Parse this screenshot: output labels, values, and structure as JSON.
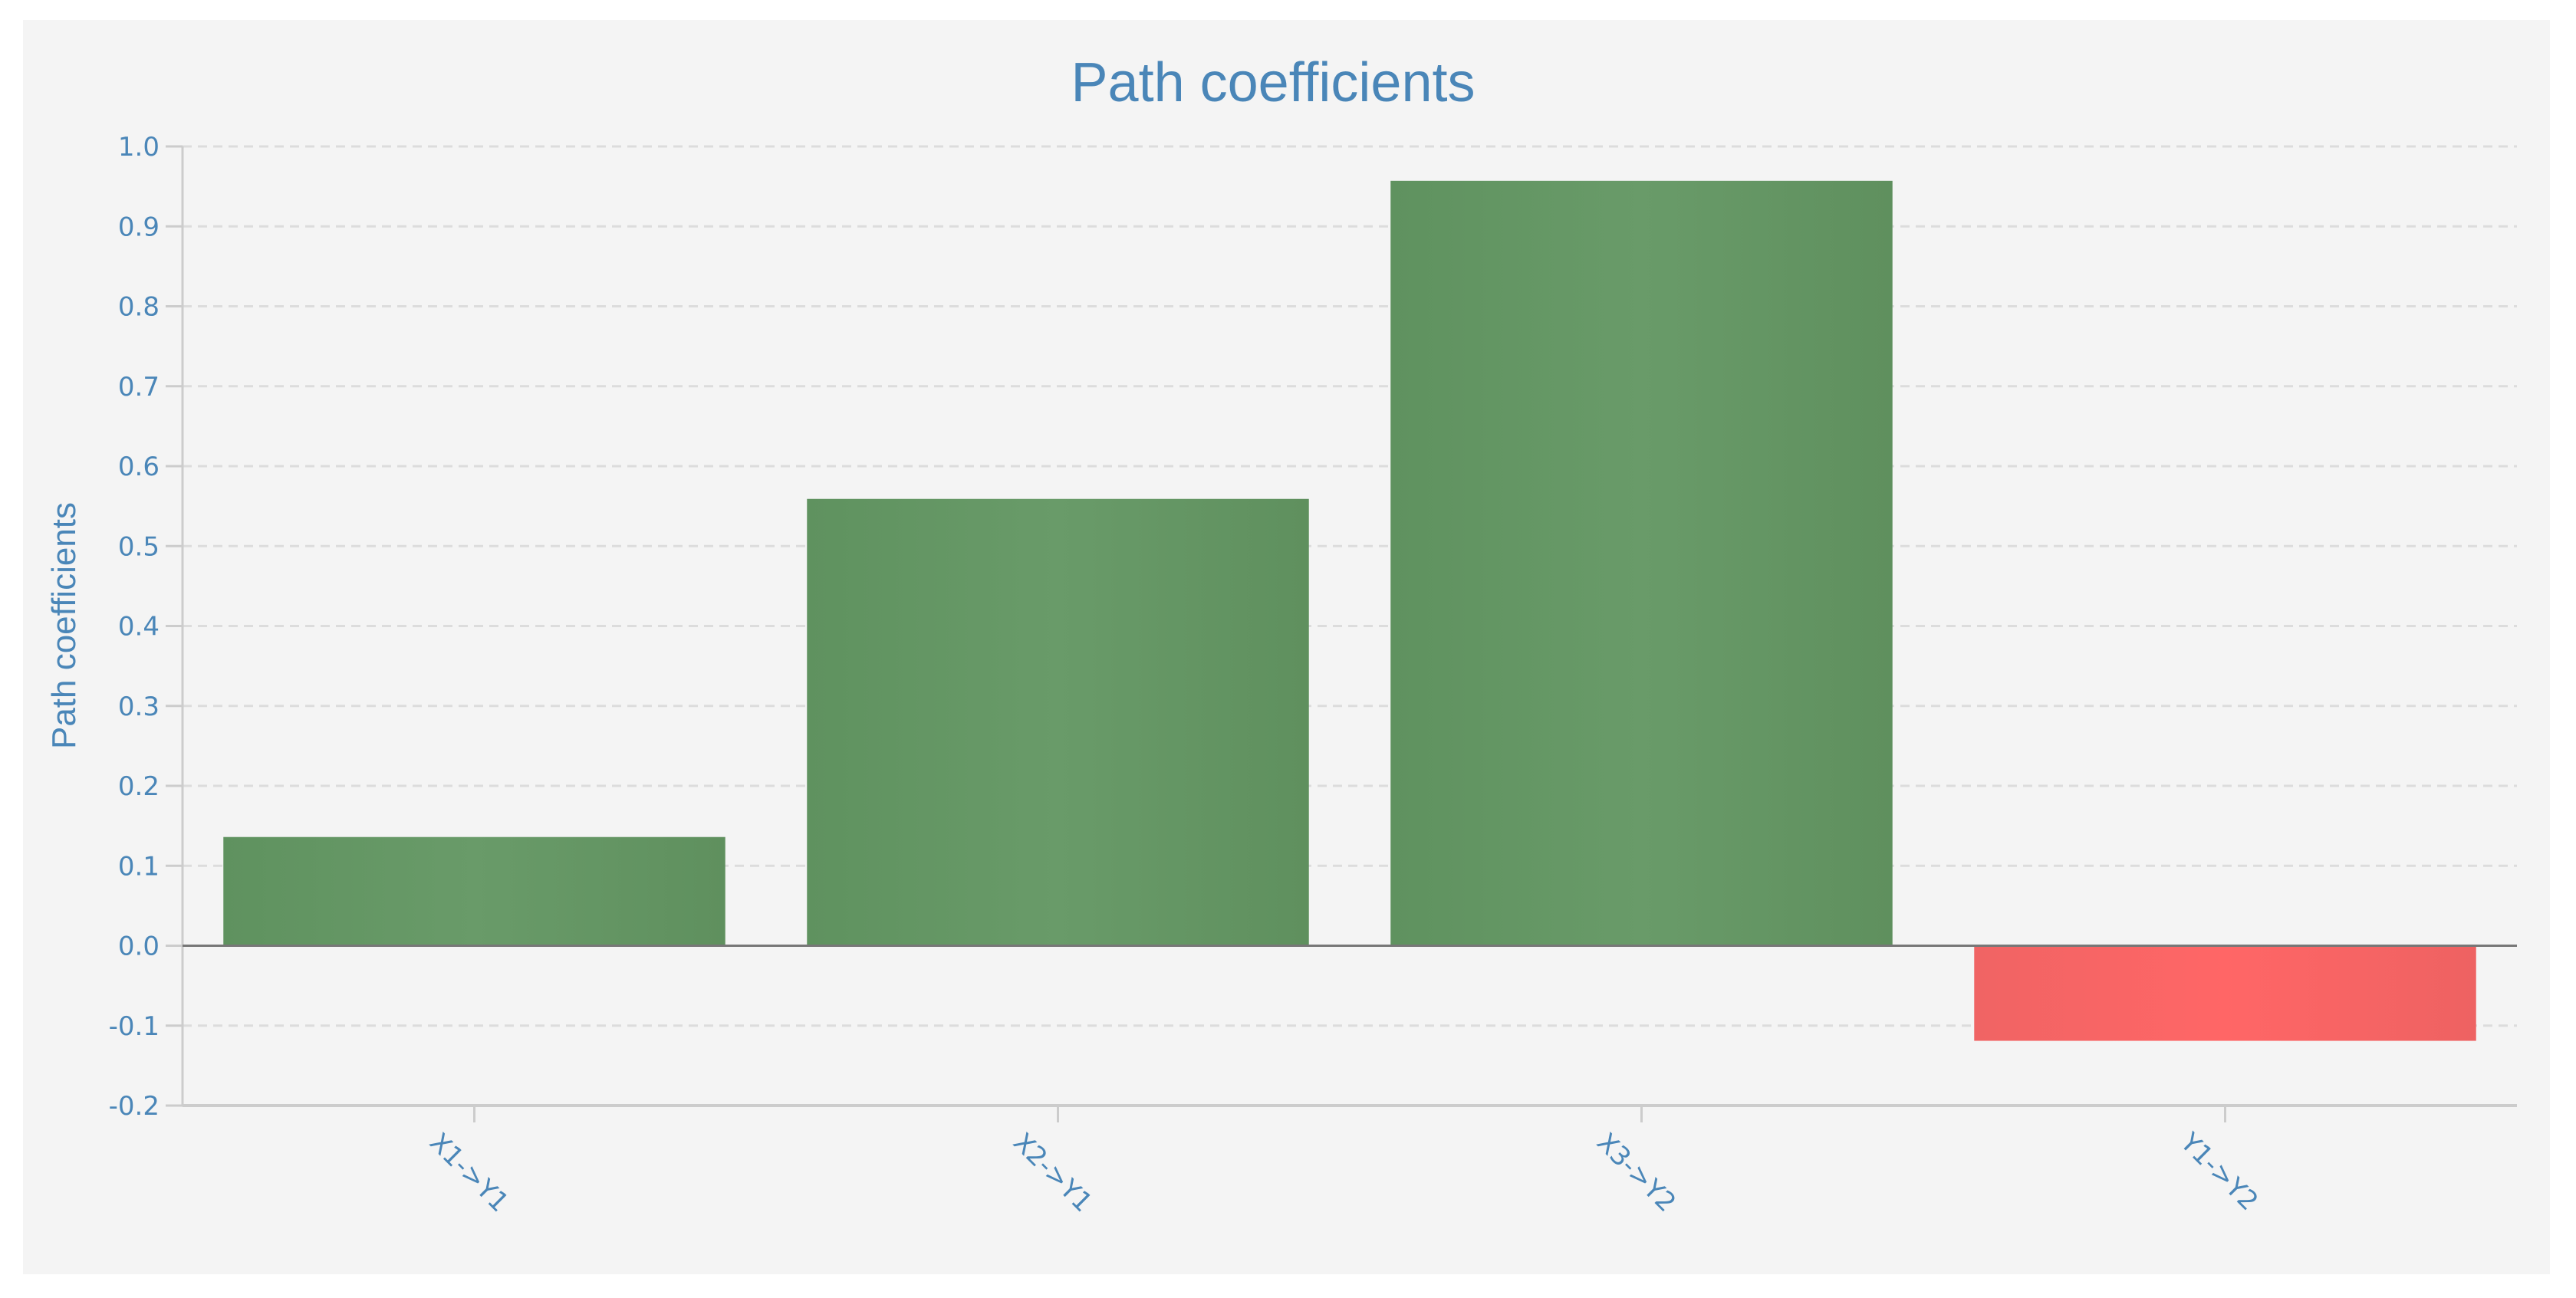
{
  "chart_data": {
    "type": "bar",
    "title": "Path coefficients",
    "xlabel": "",
    "ylabel": "Path coefficients",
    "categories": [
      "X1->Y1",
      "X2->Y1",
      "X3->Y2",
      "Y1->Y2"
    ],
    "values": [
      0.136,
      0.559,
      0.957,
      -0.119
    ],
    "ylim": [
      -0.2,
      1.0
    ],
    "yticks": [
      "-0.2",
      "-0.1",
      "0.0",
      "0.1",
      "0.2",
      "0.3",
      "0.4",
      "0.5",
      "0.6",
      "0.7",
      "0.8",
      "0.9",
      "1.0"
    ],
    "grid": true,
    "legend": "none",
    "colors": {
      "positive": "#66996a",
      "negative": "#f56565",
      "text": "#4a86b8",
      "background": "#f4f4f4"
    }
  }
}
